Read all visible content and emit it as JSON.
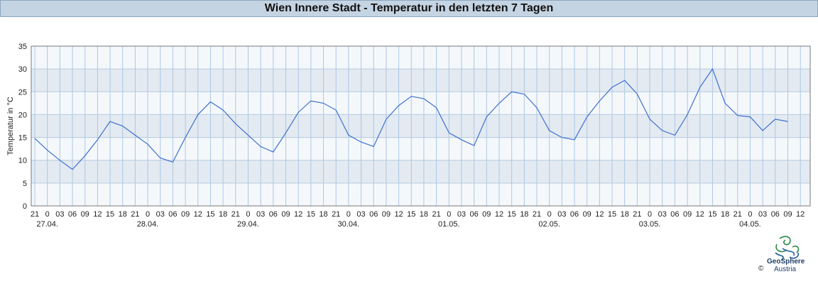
{
  "chart_data": {
    "type": "line",
    "title": "Wien Innere Stadt - Temperatur in den letzten 7 Tagen",
    "ylabel": "Temperatur in °C",
    "ylim": [
      0,
      35
    ],
    "yticks": [
      0,
      5,
      10,
      15,
      20,
      25,
      30,
      35
    ],
    "x_hour_ticks": [
      "21",
      "0",
      "03",
      "06",
      "09",
      "12",
      "15",
      "18",
      "21",
      "0",
      "03",
      "06",
      "09",
      "12",
      "15",
      "18",
      "21",
      "0",
      "03",
      "06",
      "09",
      "12",
      "15",
      "18",
      "21",
      "0",
      "03",
      "06",
      "09",
      "12",
      "15",
      "18",
      "21",
      "0",
      "03",
      "06",
      "09",
      "12",
      "15",
      "18",
      "21",
      "0",
      "03",
      "06",
      "09",
      "12",
      "15",
      "18",
      "21",
      "0",
      "03",
      "06",
      "09",
      "12",
      "15",
      "18",
      "21",
      "0",
      "03",
      "06",
      "09",
      "12"
    ],
    "x_date_labels": [
      "27.04.",
      "28.04.",
      "29.04.",
      "30.04.",
      "01.05.",
      "02.05.",
      "03.05.",
      "04.05."
    ],
    "grid": true,
    "line_color": "#3c6fd0",
    "series": [
      {
        "x_hours": [
          0,
          3,
          6,
          9,
          12,
          15,
          18,
          21,
          24,
          27,
          30,
          33,
          36,
          39,
          42,
          45,
          48,
          51,
          54,
          57,
          60,
          63,
          66,
          69,
          72,
          75,
          78,
          81,
          84,
          87,
          90,
          93,
          96,
          99,
          102,
          105,
          108,
          111,
          114,
          117,
          120,
          123,
          126,
          129,
          132,
          135,
          138,
          141,
          144,
          147,
          150,
          153,
          156,
          159,
          162,
          165,
          168,
          171,
          174,
          177,
          180
        ],
        "values": [
          14.8,
          12.2,
          10.0,
          8.0,
          11.0,
          14.5,
          18.5,
          17.5,
          15.5,
          13.5,
          10.5,
          9.6,
          15.0,
          20.0,
          22.8,
          21.0,
          18.0,
          15.5,
          13.0,
          11.8,
          16.0,
          20.5,
          23.0,
          22.5,
          21.0,
          15.5,
          14.0,
          13.0,
          19.0,
          22.0,
          24.0,
          23.5,
          21.5,
          16.0,
          14.5,
          13.2,
          19.5,
          22.5,
          25.0,
          24.5,
          21.5,
          16.5,
          15.0,
          14.5,
          19.5,
          23.0,
          26.0,
          27.5,
          24.5,
          19.0,
          16.5,
          15.5,
          20.0,
          26.0,
          30.0,
          22.5,
          19.8,
          19.5,
          16.5,
          19.0,
          18.5
        ]
      }
    ]
  },
  "logo": {
    "name": "GeoSphere",
    "sub": "Austria",
    "copyright": "©"
  }
}
